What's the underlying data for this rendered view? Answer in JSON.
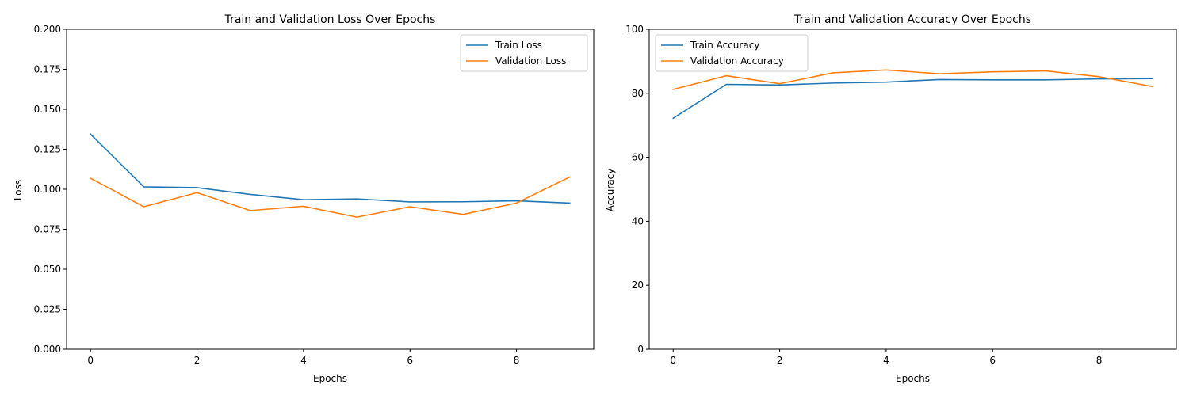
{
  "chart_data": [
    {
      "type": "line",
      "title": "Train and Validation Loss Over Epochs",
      "xlabel": "Epochs",
      "ylabel": "Loss",
      "xlim": [
        -0.45,
        9.45
      ],
      "ylim": [
        0,
        0.2
      ],
      "xticks": [
        0,
        2,
        4,
        6,
        8
      ],
      "yticks": [
        0.0,
        0.025,
        0.05,
        0.075,
        0.1,
        0.125,
        0.15,
        0.175,
        0.2
      ],
      "ytick_labels": [
        "0.000",
        "0.025",
        "0.050",
        "0.075",
        "0.100",
        "0.125",
        "0.150",
        "0.175",
        "0.200"
      ],
      "legend_position": "top-right",
      "grid": false,
      "x": [
        0,
        1,
        2,
        3,
        4,
        5,
        6,
        7,
        8,
        9
      ],
      "series": [
        {
          "name": "Train Loss",
          "color": "#1f77b4",
          "values": [
            0.1345,
            0.1015,
            0.101,
            0.0968,
            0.0935,
            0.094,
            0.0921,
            0.0922,
            0.0928,
            0.0914
          ]
        },
        {
          "name": "Validation Loss",
          "color": "#ff7f0e",
          "values": [
            0.1069,
            0.0891,
            0.0979,
            0.0867,
            0.0894,
            0.0826,
            0.0891,
            0.0843,
            0.0914,
            0.1077
          ]
        }
      ]
    },
    {
      "type": "line",
      "title": "Train and Validation Accuracy Over Epochs",
      "xlabel": "Epochs",
      "ylabel": "Accuracy",
      "xlim": [
        -0.45,
        9.45
      ],
      "ylim": [
        0,
        100
      ],
      "xticks": [
        0,
        2,
        4,
        6,
        8
      ],
      "yticks": [
        0,
        20,
        40,
        60,
        80,
        100
      ],
      "ytick_labels": [
        "0",
        "20",
        "40",
        "60",
        "80",
        "100"
      ],
      "legend_position": "top-left",
      "grid": false,
      "x": [
        0,
        1,
        2,
        3,
        4,
        5,
        6,
        7,
        8,
        9
      ],
      "series": [
        {
          "name": "Train Accuracy",
          "color": "#1f77b4",
          "values": [
            72.2,
            82.8,
            82.6,
            83.2,
            83.5,
            84.3,
            84.2,
            84.2,
            84.5,
            84.6
          ]
        },
        {
          "name": "Validation Accuracy",
          "color": "#ff7f0e",
          "values": [
            81.2,
            85.5,
            83.0,
            86.4,
            87.3,
            86.1,
            86.7,
            87.0,
            85.2,
            82.1
          ]
        }
      ]
    }
  ]
}
